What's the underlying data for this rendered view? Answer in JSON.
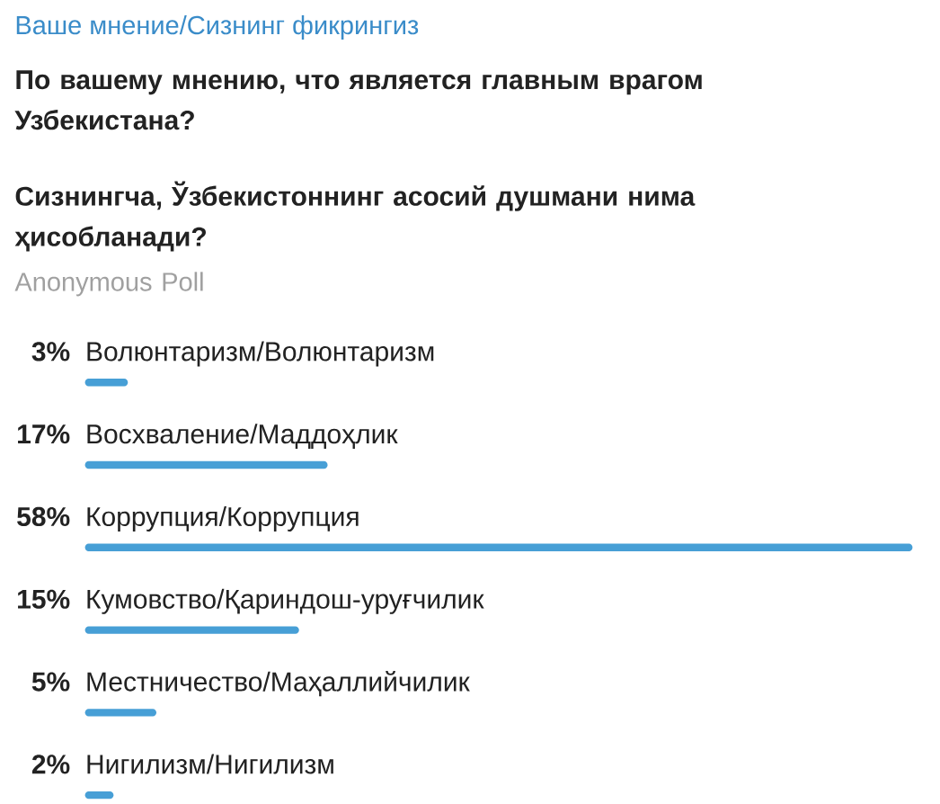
{
  "chart_data": {
    "type": "bar",
    "orientation": "horizontal",
    "title": "Ваше мнение/Сизнинг фикрингиз",
    "subtitle": "По вашему мнению, что является главным врагом Узбекистана?",
    "annotations": [
      "Сизнингча, Ўзбекистоннинг асосий душмани нима ҳисобланади?",
      "Anonymous Poll"
    ],
    "categories": [
      "Волюнтаризм/Волюнтаризм",
      "Восхваление/Маддоҳлик",
      "Коррупция/Коррупция",
      "Кумовство/Қариндош-уруғчилик",
      "Местничество/Маҳаллийчилик",
      "Нигилизм/Нигилизм"
    ],
    "values": [
      3,
      17,
      58,
      15,
      5,
      2
    ],
    "value_labels": [
      "3%",
      "17%",
      "58%",
      "15%",
      "5%",
      "2%"
    ],
    "color": "#479fd6"
  }
}
